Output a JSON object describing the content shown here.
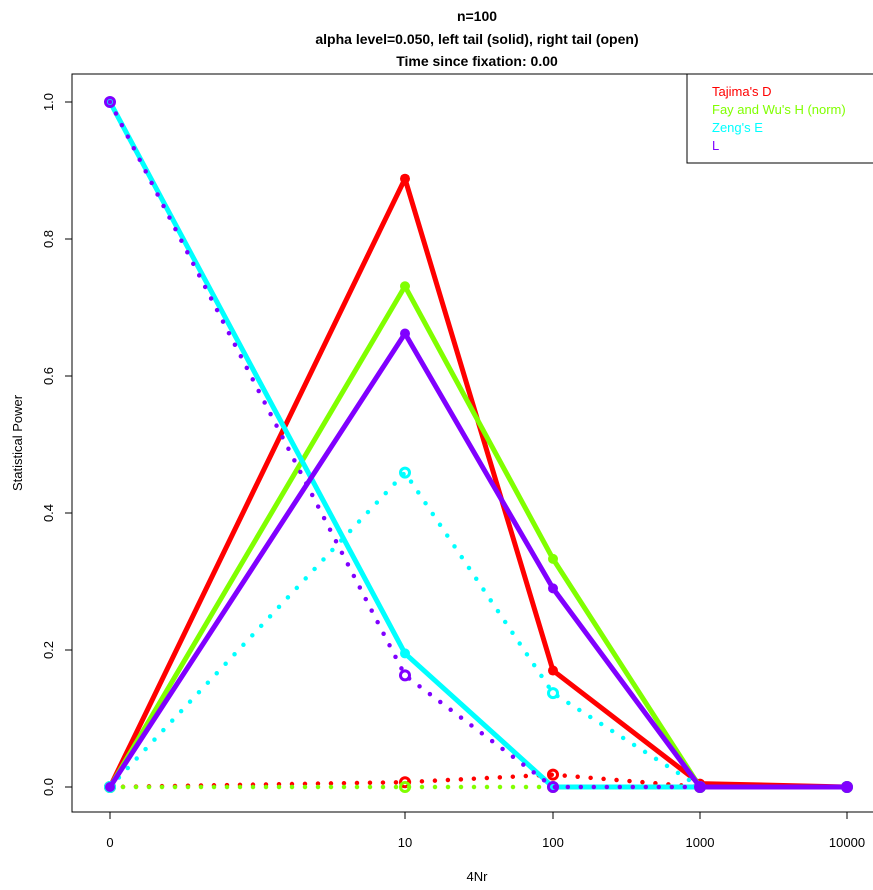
{
  "chart_data": {
    "type": "line",
    "title": [
      "n=100",
      "alpha level=0.050, left tail (solid), right tail (open)",
      "Time since fixation: 0.00"
    ],
    "xlabel": "4Nr",
    "ylabel": "Statistical Power",
    "x_tick_labels": [
      "0",
      "10",
      "100",
      "1000",
      "10000"
    ],
    "y_tick_labels": [
      "0.0",
      "0.2",
      "0.4",
      "0.6",
      "0.8",
      "1.0"
    ],
    "ylim": [
      0,
      1
    ],
    "legend_position": "top-right",
    "series": [
      {
        "name": "Tajima's D",
        "color": "#ff0000",
        "left_tail": [
          0.0,
          0.888,
          0.17,
          0.005,
          0.0
        ],
        "right_tail": [
          0.0,
          0.007,
          0.018,
          0.0,
          0.0
        ]
      },
      {
        "name": "Fay and Wu's H (norm)",
        "color": "#80ff00",
        "left_tail": [
          0.0,
          0.731,
          0.333,
          0.0,
          0.0
        ],
        "right_tail": [
          0.0,
          0.0,
          0.0,
          0.0,
          0.0
        ]
      },
      {
        "name": "Zeng's E",
        "color": "#00ffff",
        "left_tail": [
          1.0,
          0.195,
          0.0,
          0.0,
          0.0
        ],
        "right_tail": [
          0.0,
          0.459,
          0.137,
          0.0,
          0.0
        ]
      },
      {
        "name": "L",
        "color": "#8000ff",
        "left_tail": [
          0.0,
          0.662,
          0.29,
          0.0,
          0.0
        ],
        "right_tail": [
          1.0,
          0.163,
          0.0,
          0.0,
          0.0
        ]
      }
    ]
  }
}
